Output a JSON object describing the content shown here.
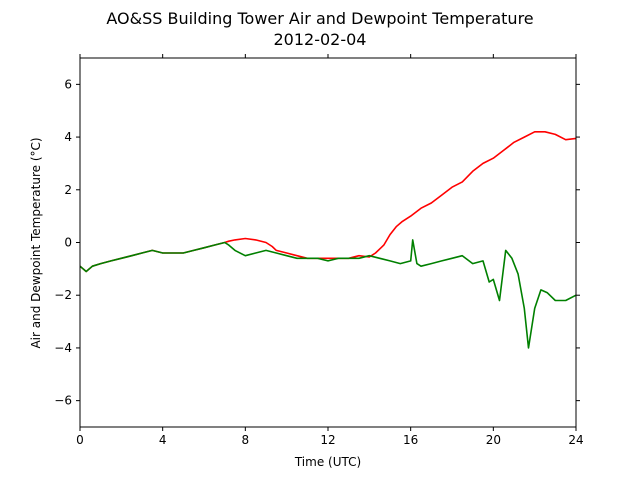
{
  "chart_data": {
    "type": "line",
    "title": "AO&SS Building Tower Air and Dewpoint Temperature",
    "subtitle": "2012-02-04",
    "xlabel": "Time (UTC)",
    "ylabel": "Air and Dewpoint Temperature (°C)",
    "xlim": [
      0,
      24
    ],
    "ylim": [
      -7,
      7
    ],
    "xticks": [
      0,
      4,
      8,
      12,
      16,
      20,
      24
    ],
    "yticks": [
      -6,
      -4,
      -2,
      0,
      2,
      4,
      6
    ],
    "grid": false,
    "legend": "none",
    "series": [
      {
        "color": "#ff0000",
        "x": [
          0,
          0.3,
          0.6,
          1,
          1.5,
          2,
          2.5,
          3,
          3.5,
          4,
          4.5,
          5,
          5.5,
          6,
          6.5,
          7,
          7.2,
          7.5,
          8,
          8.5,
          9,
          9.3,
          9.5,
          10,
          10.5,
          11,
          11.5,
          12,
          12.5,
          13,
          13.5,
          14,
          14.3,
          14.7,
          15,
          15.3,
          15.6,
          16,
          16.5,
          17,
          17.5,
          18,
          18.5,
          19,
          19.5,
          20,
          20.5,
          21,
          21.5,
          22,
          22.5,
          23,
          23.5,
          24
        ],
        "y": [
          -0.9,
          -1.1,
          -0.9,
          -0.8,
          -0.7,
          -0.6,
          -0.5,
          -0.4,
          -0.3,
          -0.4,
          -0.4,
          -0.4,
          -0.3,
          -0.2,
          -0.1,
          0.0,
          0.05,
          0.1,
          0.15,
          0.1,
          0.0,
          -0.15,
          -0.3,
          -0.4,
          -0.5,
          -0.6,
          -0.6,
          -0.6,
          -0.6,
          -0.6,
          -0.5,
          -0.55,
          -0.4,
          -0.1,
          0.3,
          0.6,
          0.8,
          1.0,
          1.3,
          1.5,
          1.8,
          2.1,
          2.3,
          2.7,
          3.0,
          3.2,
          3.5,
          3.8,
          4.0,
          4.2,
          4.2,
          4.1,
          3.9,
          3.95
        ]
      },
      {
        "color": "#008000",
        "x": [
          0,
          0.3,
          0.6,
          1,
          1.5,
          2,
          2.5,
          3,
          3.5,
          4,
          4.5,
          5,
          5.5,
          6,
          6.5,
          7,
          7.2,
          7.5,
          8,
          8.5,
          9,
          9.5,
          10,
          10.5,
          11,
          11.5,
          12,
          12.5,
          13,
          13.5,
          14,
          14.5,
          15,
          15.5,
          16,
          16.1,
          16.3,
          16.5,
          17,
          17.5,
          18,
          18.5,
          19,
          19.5,
          19.8,
          20,
          20.3,
          20.6,
          20.9,
          21.2,
          21.5,
          21.7,
          22,
          22.3,
          22.6,
          23,
          23.5,
          24
        ],
        "y": [
          -0.9,
          -1.1,
          -0.9,
          -0.8,
          -0.7,
          -0.6,
          -0.5,
          -0.4,
          -0.3,
          -0.4,
          -0.4,
          -0.4,
          -0.3,
          -0.2,
          -0.1,
          0.0,
          -0.1,
          -0.3,
          -0.5,
          -0.4,
          -0.3,
          -0.4,
          -0.5,
          -0.6,
          -0.6,
          -0.6,
          -0.7,
          -0.6,
          -0.6,
          -0.6,
          -0.5,
          -0.6,
          -0.7,
          -0.8,
          -0.7,
          0.1,
          -0.8,
          -0.9,
          -0.8,
          -0.7,
          -0.6,
          -0.5,
          -0.8,
          -0.7,
          -1.5,
          -1.4,
          -2.2,
          -0.3,
          -0.6,
          -1.2,
          -2.5,
          -4.0,
          -2.5,
          -1.8,
          -1.9,
          -2.2,
          -2.2,
          -2.0
        ]
      }
    ]
  }
}
